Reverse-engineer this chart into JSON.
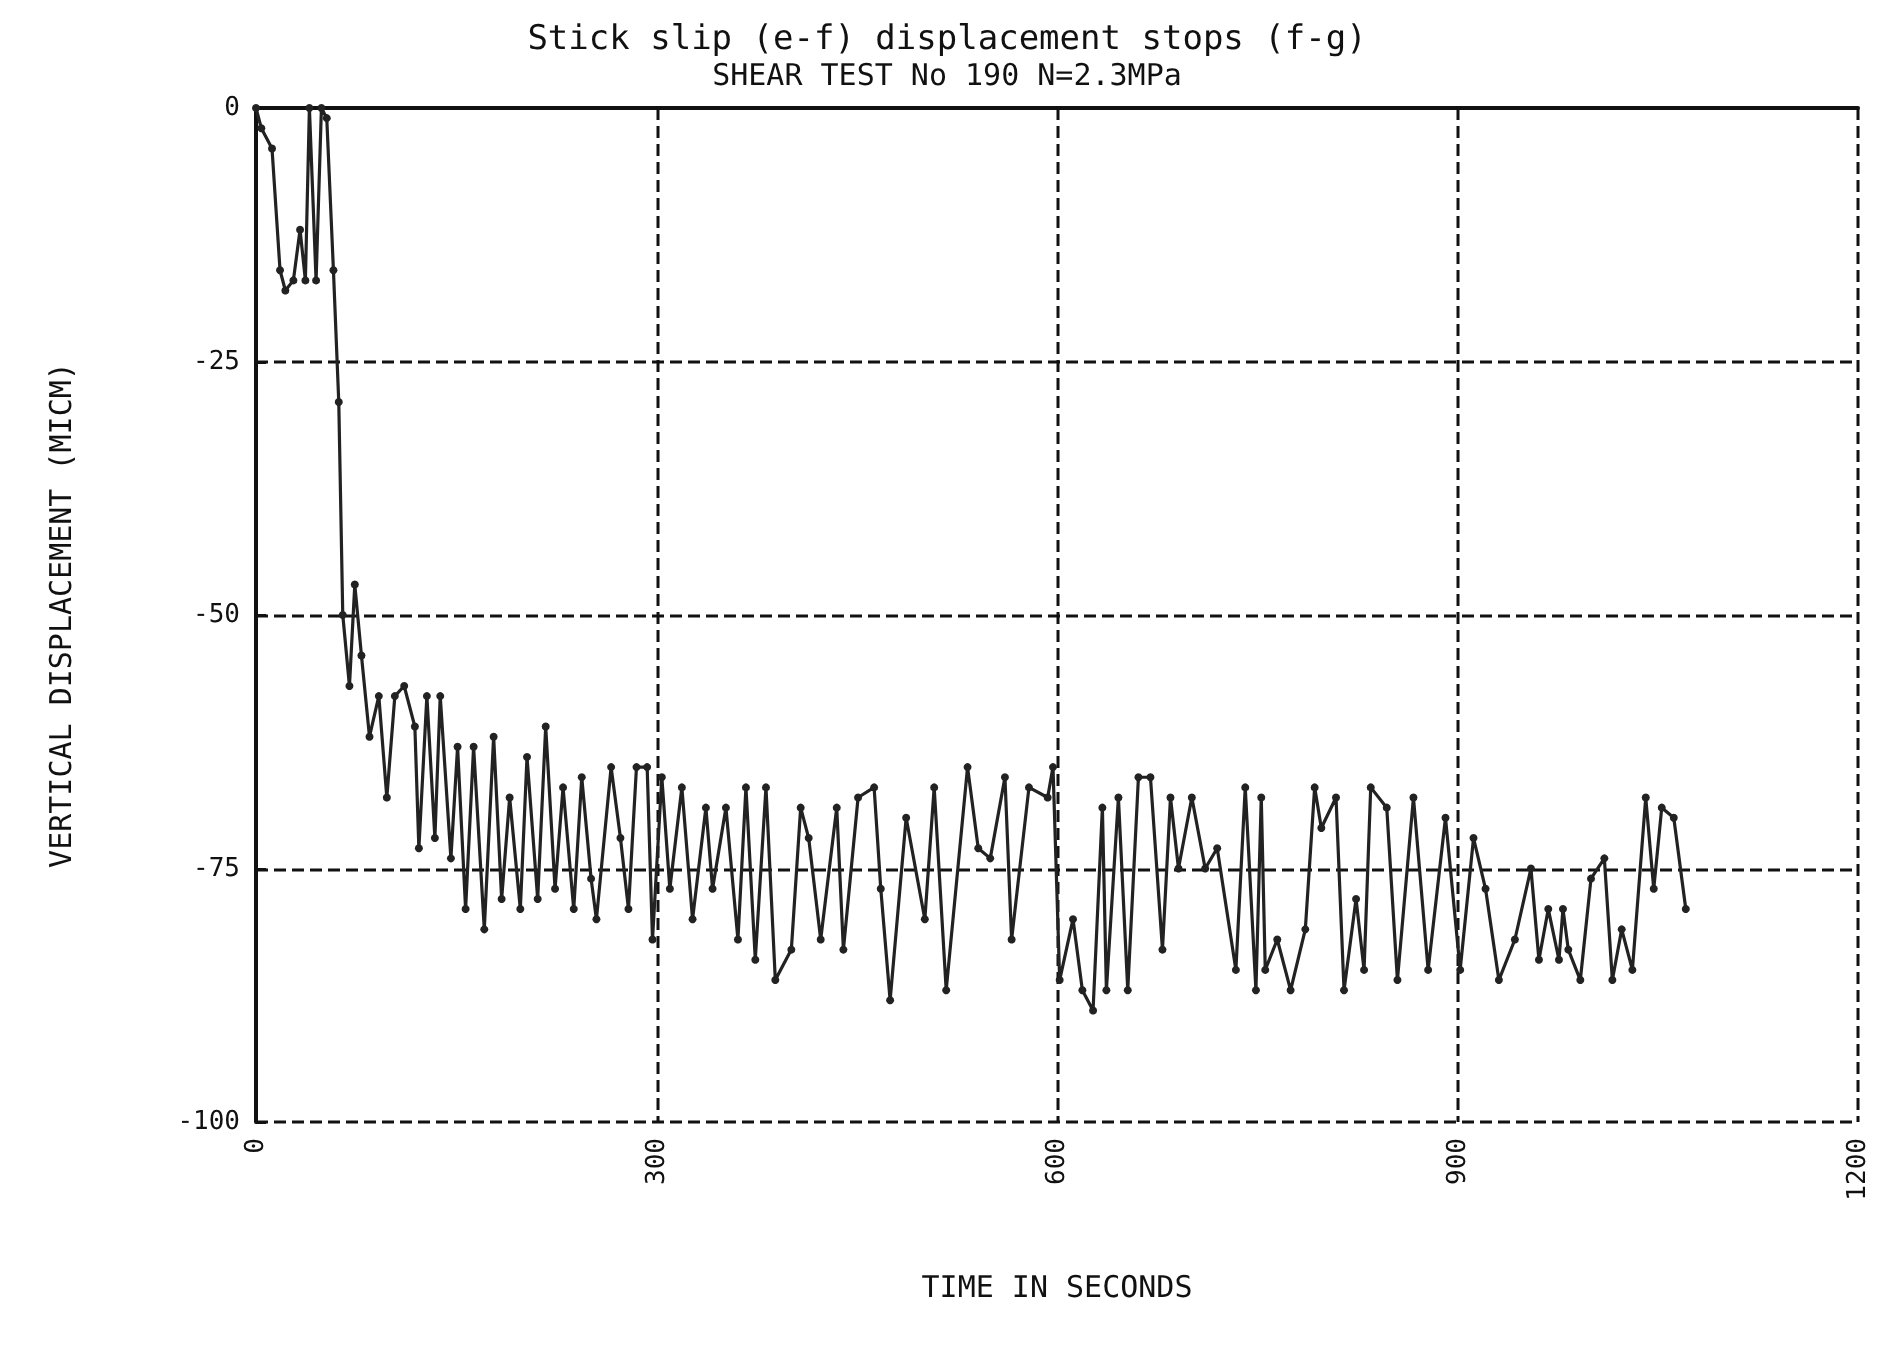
{
  "chart_data": {
    "type": "line",
    "title": "Stick slip (e-f) displacement stops (f-g)",
    "subtitle": "SHEAR TEST No 190 N=2.3MPa",
    "xlabel": "TIME IN SECONDS",
    "ylabel": "VERTICAL DISPLACEMENT (MICM)",
    "x": [
      0,
      4,
      12,
      18,
      22,
      28,
      33,
      37,
      40,
      45,
      49,
      53,
      58,
      62,
      65,
      70,
      74,
      79,
      85,
      92,
      98,
      104,
      111,
      119,
      122,
      128,
      134,
      138,
      146,
      151,
      157,
      163,
      171,
      178,
      184,
      190,
      198,
      203,
      211,
      217,
      224,
      230,
      238,
      244,
      251,
      255,
      266,
      273,
      279,
      285,
      293,
      297,
      304,
      310,
      319,
      327,
      337,
      342,
      352,
      361,
      367,
      374,
      382,
      389,
      401,
      408,
      414,
      423,
      435,
      440,
      451,
      463,
      468,
      475,
      487,
      501,
      508,
      517,
      533,
      541,
      550,
      561,
      566,
      579,
      593,
      597,
      602,
      612,
      619,
      627,
      634,
      637,
      646,
      653,
      661,
      670,
      679,
      685,
      691,
      701,
      711,
      720,
      734,
      741,
      749,
      753,
      756,
      765,
      775,
      786,
      793,
      798,
      809,
      815,
      824,
      830,
      835,
      847,
      855,
      867,
      878,
      891,
      902,
      912,
      921,
      931,
      943,
      955,
      961,
      968,
      976,
      979,
      983,
      992,
      1000,
      1010,
      1016,
      1023,
      1031,
      1041,
      1047,
      1053,
      1062,
      1071
    ],
    "series": [
      {
        "color": "#222222",
        "values": [
          0,
          -2,
          -4,
          -16,
          -18,
          -17,
          -12,
          -17,
          0,
          -17,
          0,
          -1,
          -16,
          -29,
          -50,
          -57,
          -47,
          -54,
          -62,
          -58,
          -68,
          -58,
          -57,
          -61,
          -73,
          -58,
          -72,
          -58,
          -74,
          -63,
          -79,
          -63,
          -81,
          -62,
          -78,
          -68,
          -79,
          -64,
          -78,
          -61,
          -77,
          -67,
          -79,
          -66,
          -76,
          -80,
          -65,
          -72,
          -79,
          -65,
          -65,
          -82,
          -66,
          -77,
          -67,
          -80,
          -69,
          -77,
          -69,
          -82,
          -67,
          -84,
          -67,
          -86,
          -83,
          -69,
          -72,
          -82,
          -69,
          -83,
          -68,
          -67,
          -77,
          -88,
          -70,
          -80,
          -67,
          -87,
          -65,
          -73,
          -74,
          -66,
          -82,
          -67,
          -68,
          -65,
          -86,
          -80,
          -87,
          -89,
          -69,
          -87,
          -68,
          -87,
          -66,
          -66,
          -83,
          -68,
          -75,
          -68,
          -75,
          -73,
          -85,
          -67,
          -87,
          -68,
          -85,
          -82,
          -87,
          -81,
          -67,
          -71,
          -68,
          -87,
          -78,
          -85,
          -67,
          -69,
          -86,
          -68,
          -85,
          -70,
          -85,
          -72,
          -77,
          -86,
          -82,
          -75,
          -84,
          -79,
          -84,
          -79,
          -83,
          -86,
          -76,
          -74,
          -86,
          -81,
          -85,
          -68,
          -77,
          -69,
          -70,
          -79
        ]
      }
    ],
    "xlim": [
      0,
      1200
    ],
    "xticks": [
      0,
      300,
      600,
      900,
      1200
    ],
    "ylim": [
      -100,
      0
    ],
    "yticks": [
      -100,
      -75,
      -50,
      -25,
      0
    ],
    "grid": true,
    "marker": "circle",
    "line_style": "solid"
  }
}
